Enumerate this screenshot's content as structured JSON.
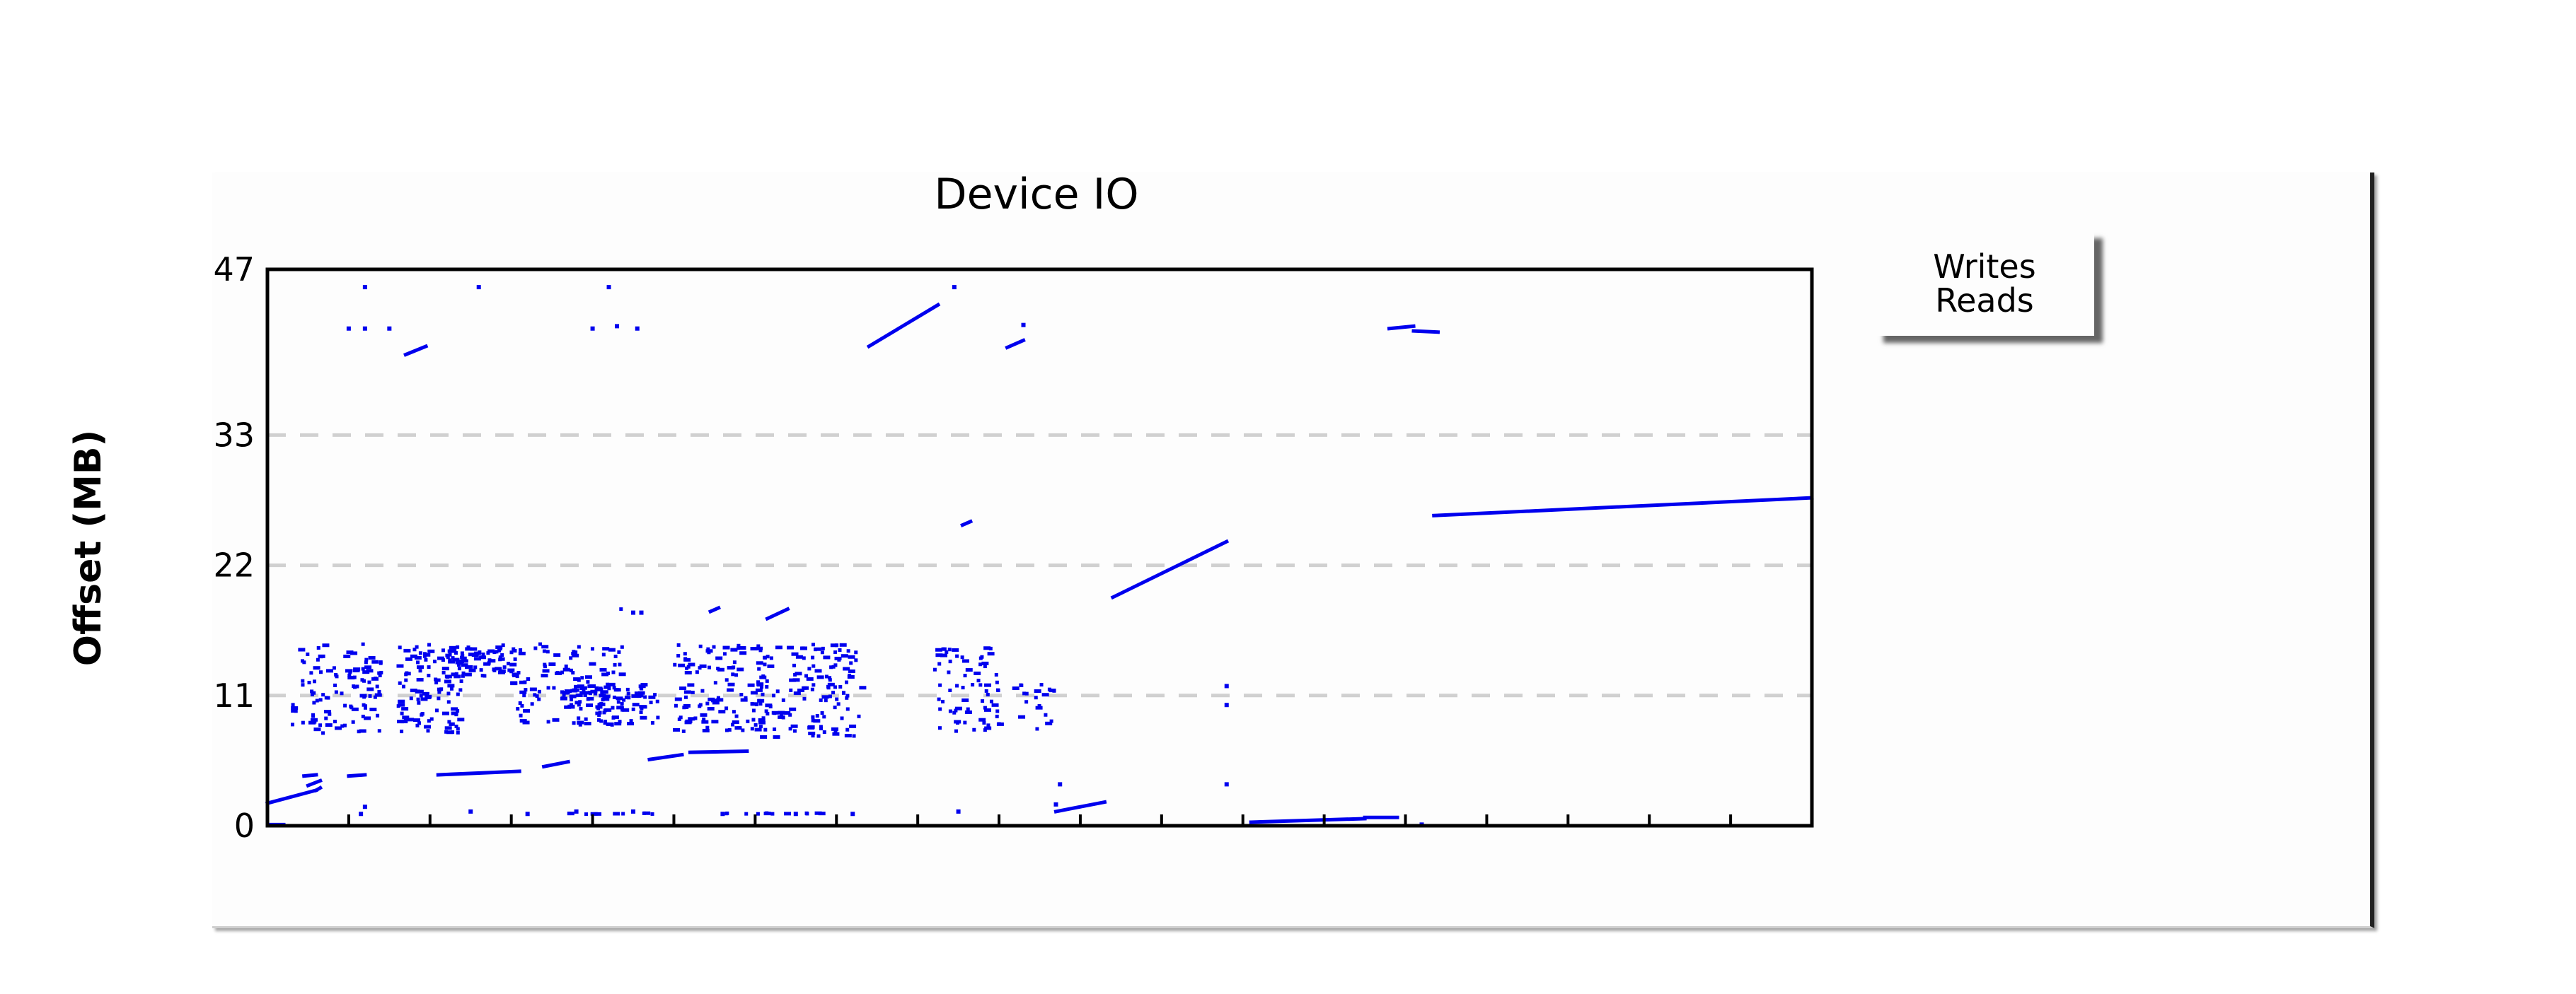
{
  "chart_data": {
    "type": "scatter",
    "title": "Device IO",
    "xlabel": "",
    "ylabel": "Offset (MB)",
    "ylim": [
      0,
      47
    ],
    "xlim": [
      0,
      19
    ],
    "y_ticks": [
      0,
      11,
      22,
      33,
      47
    ],
    "x_ticks": [
      0,
      1,
      2,
      3,
      4,
      5,
      6,
      7,
      8,
      9,
      10,
      11,
      12,
      13,
      14,
      15,
      16,
      17,
      18,
      19
    ],
    "grid": "horizontal-dashed",
    "legend_position": "right",
    "colors": {
      "points": "#0000ee",
      "grid": "#d0d0d0",
      "axes": "#000000"
    },
    "series": [
      {
        "name": "Writes",
        "segments": [
          [
            0.0,
            1.9,
            0.6,
            3.0
          ],
          [
            0.6,
            3.0,
            0.65,
            3.2
          ],
          [
            0.5,
            3.4,
            0.65,
            3.8
          ],
          [
            0.45,
            4.2,
            0.6,
            4.3
          ],
          [
            1.0,
            4.2,
            1.2,
            4.3
          ],
          [
            2.1,
            4.3,
            3.1,
            4.6
          ],
          [
            3.4,
            5.0,
            3.7,
            5.4
          ],
          [
            4.7,
            5.6,
            5.1,
            6.0
          ],
          [
            5.2,
            6.2,
            5.9,
            6.3
          ],
          [
            7.4,
            40.5,
            8.25,
            44.0
          ],
          [
            6.15,
            17.5,
            6.4,
            18.3
          ],
          [
            4.35,
            18.3,
            4.35,
            18.3
          ],
          [
            10.4,
            19.3,
            11.8,
            24.0
          ],
          [
            8.55,
            25.4,
            8.65,
            25.7
          ],
          [
            14.35,
            26.2,
            19.0,
            27.7
          ],
          [
            13.8,
            42.0,
            14.1,
            42.2
          ],
          [
            14.1,
            41.8,
            14.4,
            41.7
          ],
          [
            9.1,
            40.4,
            9.3,
            41.0
          ],
          [
            1.7,
            39.8,
            1.95,
            40.5
          ],
          [
            9.7,
            1.2,
            10.3,
            2.0
          ],
          [
            12.1,
            0.3,
            13.5,
            0.6
          ],
          [
            13.5,
            0.7,
            13.9,
            0.7
          ],
          [
            0.0,
            0.1,
            0.2,
            0.1
          ],
          [
            5.45,
            18.1,
            5.55,
            18.4
          ]
        ],
        "points": [
          [
            1.2,
            45.5
          ],
          [
            2.6,
            45.5
          ],
          [
            4.2,
            45.5
          ],
          [
            8.45,
            45.5
          ],
          [
            1.0,
            42.0
          ],
          [
            1.2,
            42.0
          ],
          [
            1.5,
            42.0
          ],
          [
            4.0,
            42.0
          ],
          [
            4.3,
            42.2
          ],
          [
            4.55,
            42.0
          ],
          [
            9.3,
            42.3
          ],
          [
            4.5,
            18.0
          ],
          [
            4.6,
            18.0
          ],
          [
            11.8,
            10.2
          ],
          [
            11.8,
            11.8
          ],
          [
            11.8,
            3.5
          ],
          [
            9.75,
            3.5
          ],
          [
            1.15,
            1.0
          ],
          [
            1.2,
            1.6
          ],
          [
            2.5,
            1.2
          ],
          [
            3.2,
            1.0
          ],
          [
            3.8,
            1.2
          ],
          [
            4.5,
            1.2
          ],
          [
            5.6,
            1.0
          ],
          [
            6.5,
            1.0
          ],
          [
            7.2,
            1.0
          ],
          [
            8.5,
            1.2
          ],
          [
            9.7,
            1.8
          ],
          [
            14.2,
            0.1
          ]
        ],
        "clusters": [
          {
            "x": [
              0.3,
              1.4
            ],
            "y": [
              7.8,
              15.4
            ],
            "n": 110
          },
          {
            "x": [
              1.6,
              2.4
            ],
            "y": [
              7.8,
              15.4
            ],
            "n": 110
          },
          {
            "x": [
              2.2,
              3.1
            ],
            "y": [
              12.6,
              15.4
            ],
            "n": 70
          },
          {
            "x": [
              3.0,
              4.4
            ],
            "y": [
              8.5,
              15.4
            ],
            "n": 110
          },
          {
            "x": [
              3.6,
              4.8
            ],
            "y": [
              8.6,
              12.0
            ],
            "n": 90
          },
          {
            "x": [
              5.0,
              6.1
            ],
            "y": [
              8.0,
              15.4
            ],
            "n": 110
          },
          {
            "x": [
              6.0,
              7.3
            ],
            "y": [
              7.5,
              15.4
            ],
            "n": 140
          },
          {
            "x": [
              8.2,
              9.0
            ],
            "y": [
              7.8,
              15.2
            ],
            "n": 70
          },
          {
            "x": [
              9.1,
              9.7
            ],
            "y": [
              8.2,
              12.0
            ],
            "n": 20
          },
          {
            "x": [
              3.6,
              4.8
            ],
            "y": [
              1.0,
              1.1
            ],
            "n": 10
          },
          {
            "x": [
              5.5,
              6.9
            ],
            "y": [
              1.0,
              1.1
            ],
            "n": 12
          }
        ]
      },
      {
        "name": "Reads"
      }
    ]
  }
}
